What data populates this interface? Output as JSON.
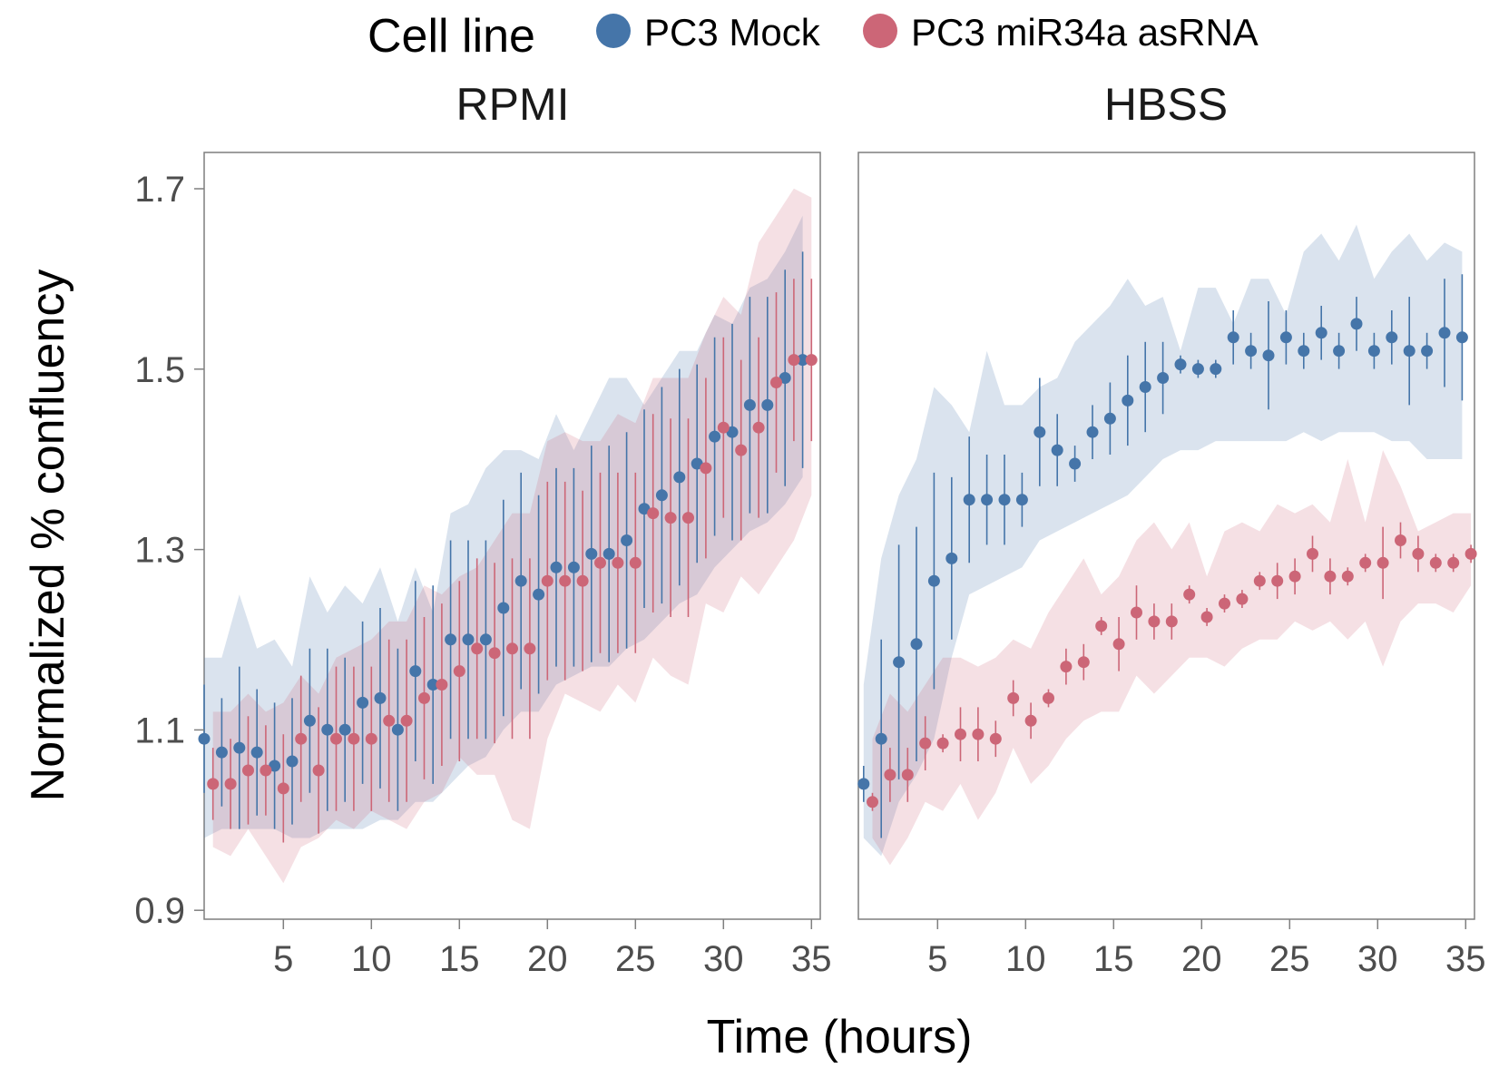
{
  "legend": {
    "title": "Cell line",
    "items": [
      {
        "label": "PC3 Mock",
        "color": "#4575a9"
      },
      {
        "label": "PC3 miR34a asRNA",
        "color": "#cc6677"
      }
    ]
  },
  "axes": {
    "xlabel": "Time (hours)",
    "ylabel": "Normalized % confluency",
    "yticks": [
      "0.9",
      "1.1",
      "1.3",
      "1.5",
      "1.7"
    ],
    "xticks": [
      "5",
      "10",
      "15",
      "20",
      "25",
      "30",
      "35"
    ]
  },
  "chart_data": [
    {
      "type": "scatter",
      "facet": "RPMI",
      "xlim": [
        0.5,
        35.5
      ],
      "ylim": [
        0.89,
        1.74
      ],
      "xlabel": "Time (hours)",
      "ylabel": "Normalized % confluency",
      "grid": false,
      "legend_position": "top",
      "series": [
        {
          "name": "PC3 Mock",
          "color": "#4575a9",
          "x": [
            0.5,
            1.5,
            2.5,
            3.5,
            4.5,
            5.5,
            6.5,
            7.5,
            8.5,
            9.5,
            10.5,
            11.5,
            12.5,
            13.5,
            14.5,
            15.5,
            16.5,
            17.5,
            18.5,
            19.5,
            20.5,
            21.5,
            22.5,
            23.5,
            24.5,
            25.5,
            26.5,
            27.5,
            28.5,
            29.5,
            30.5,
            31.5,
            32.5,
            33.5,
            34.5
          ],
          "y": [
            1.09,
            1.075,
            1.08,
            1.075,
            1.06,
            1.065,
            1.11,
            1.1,
            1.1,
            1.13,
            1.135,
            1.1,
            1.165,
            1.15,
            1.2,
            1.2,
            1.2,
            1.235,
            1.265,
            1.25,
            1.28,
            1.28,
            1.295,
            1.295,
            1.31,
            1.345,
            1.36,
            1.38,
            1.395,
            1.425,
            1.43,
            1.46,
            1.46,
            1.49,
            1.51
          ],
          "err": [
            0.06,
            0.06,
            0.09,
            0.07,
            0.07,
            0.07,
            0.08,
            0.09,
            0.08,
            0.09,
            0.1,
            0.09,
            0.1,
            0.11,
            0.11,
            0.11,
            0.11,
            0.12,
            0.12,
            0.11,
            0.11,
            0.11,
            0.12,
            0.12,
            0.12,
            0.11,
            0.12,
            0.12,
            0.11,
            0.11,
            0.12,
            0.12,
            0.12,
            0.12,
            0.12
          ],
          "band_low": [
            0.98,
            0.99,
            0.99,
            0.99,
            0.99,
            0.98,
            0.98,
            0.99,
            0.99,
            0.99,
            1.0,
            1.0,
            1.02,
            1.02,
            1.04,
            1.06,
            1.07,
            1.1,
            1.12,
            1.12,
            1.15,
            1.16,
            1.17,
            1.17,
            1.19,
            1.2,
            1.22,
            1.24,
            1.25,
            1.28,
            1.3,
            1.32,
            1.33,
            1.35,
            1.38
          ],
          "band_high": [
            1.18,
            1.18,
            1.25,
            1.19,
            1.2,
            1.17,
            1.27,
            1.23,
            1.26,
            1.24,
            1.28,
            1.22,
            1.28,
            1.23,
            1.34,
            1.35,
            1.39,
            1.41,
            1.41,
            1.4,
            1.45,
            1.41,
            1.45,
            1.49,
            1.49,
            1.46,
            1.49,
            1.52,
            1.52,
            1.56,
            1.55,
            1.59,
            1.6,
            1.63,
            1.67
          ]
        },
        {
          "name": "PC3 miR34a asRNA",
          "color": "#cc6677",
          "x": [
            1.0,
            2.0,
            3.0,
            4.0,
            5.0,
            6.0,
            7.0,
            8.0,
            9.0,
            10.0,
            11.0,
            12.0,
            13.0,
            14.0,
            15.0,
            16.0,
            17.0,
            18.0,
            19.0,
            20.0,
            21.0,
            22.0,
            23.0,
            24.0,
            25.0,
            26.0,
            27.0,
            28.0,
            29.0,
            30.0,
            31.0,
            32.0,
            33.0,
            34.0,
            35.0
          ],
          "y": [
            1.04,
            1.04,
            1.055,
            1.055,
            1.035,
            1.09,
            1.055,
            1.09,
            1.09,
            1.09,
            1.11,
            1.11,
            1.135,
            1.15,
            1.165,
            1.19,
            1.185,
            1.19,
            1.19,
            1.265,
            1.265,
            1.265,
            1.285,
            1.285,
            1.285,
            1.34,
            1.335,
            1.335,
            1.39,
            1.435,
            1.41,
            1.435,
            1.485,
            1.51,
            1.51
          ],
          "err": [
            0.04,
            0.05,
            0.06,
            0.05,
            0.06,
            0.07,
            0.07,
            0.08,
            0.08,
            0.08,
            0.09,
            0.09,
            0.09,
            0.09,
            0.1,
            0.1,
            0.1,
            0.1,
            0.1,
            0.11,
            0.11,
            0.1,
            0.1,
            0.1,
            0.1,
            0.11,
            0.11,
            0.11,
            0.1,
            0.1,
            0.1,
            0.1,
            0.1,
            0.09,
            0.09
          ],
          "band_low": [
            0.97,
            0.96,
            0.99,
            0.96,
            0.93,
            0.97,
            0.98,
            1.0,
            0.99,
            1.01,
            1.0,
            0.99,
            1.02,
            1.03,
            1.07,
            1.05,
            1.05,
            1.0,
            0.99,
            1.09,
            1.14,
            1.13,
            1.12,
            1.15,
            1.13,
            1.18,
            1.16,
            1.15,
            1.24,
            1.23,
            1.27,
            1.25,
            1.28,
            1.31,
            1.36
          ],
          "band_high": [
            1.12,
            1.12,
            1.14,
            1.12,
            1.13,
            1.16,
            1.14,
            1.18,
            1.19,
            1.2,
            1.22,
            1.22,
            1.26,
            1.25,
            1.27,
            1.28,
            1.31,
            1.34,
            1.34,
            1.42,
            1.43,
            1.42,
            1.42,
            1.45,
            1.44,
            1.49,
            1.49,
            1.49,
            1.54,
            1.58,
            1.56,
            1.64,
            1.67,
            1.7,
            1.69
          ]
        }
      ]
    },
    {
      "type": "scatter",
      "facet": "HBSS",
      "xlim": [
        0.5,
        35.5
      ],
      "ylim": [
        0.89,
        1.74
      ],
      "xlabel": "Time (hours)",
      "ylabel": "Normalized % confluency",
      "grid": false,
      "legend_position": "top",
      "series": [
        {
          "name": "PC3 Mock",
          "color": "#4575a9",
          "x": [
            0.8,
            1.8,
            2.8,
            3.8,
            4.8,
            5.8,
            6.8,
            7.8,
            8.8,
            9.8,
            10.8,
            11.8,
            12.8,
            13.8,
            14.8,
            15.8,
            16.8,
            17.8,
            18.8,
            19.8,
            20.8,
            21.8,
            22.8,
            23.8,
            24.8,
            25.8,
            26.8,
            27.8,
            28.8,
            29.8,
            30.8,
            31.8,
            32.8,
            33.8,
            34.8
          ],
          "y": [
            1.04,
            1.09,
            1.175,
            1.195,
            1.265,
            1.29,
            1.355,
            1.355,
            1.355,
            1.355,
            1.43,
            1.41,
            1.395,
            1.43,
            1.445,
            1.465,
            1.48,
            1.49,
            1.505,
            1.5,
            1.5,
            1.535,
            1.52,
            1.515,
            1.535,
            1.52,
            1.54,
            1.52,
            1.55,
            1.52,
            1.535,
            1.52,
            1.52,
            1.54,
            1.535
          ],
          "err": [
            0.02,
            0.11,
            0.13,
            0.13,
            0.12,
            0.09,
            0.07,
            0.05,
            0.05,
            0.03,
            0.06,
            0.04,
            0.02,
            0.03,
            0.04,
            0.05,
            0.05,
            0.04,
            0.01,
            0.01,
            0.01,
            0.03,
            0.02,
            0.06,
            0.03,
            0.02,
            0.03,
            0.02,
            0.03,
            0.02,
            0.03,
            0.06,
            0.02,
            0.06,
            0.07
          ],
          "band_low": [
            0.98,
            0.96,
            1.02,
            1.05,
            1.09,
            1.18,
            1.25,
            1.26,
            1.27,
            1.28,
            1.31,
            1.32,
            1.33,
            1.34,
            1.35,
            1.36,
            1.38,
            1.4,
            1.41,
            1.41,
            1.42,
            1.42,
            1.42,
            1.42,
            1.42,
            1.43,
            1.42,
            1.43,
            1.43,
            1.43,
            1.42,
            1.42,
            1.4,
            1.4,
            1.4
          ],
          "band_high": [
            1.15,
            1.29,
            1.36,
            1.4,
            1.48,
            1.46,
            1.43,
            1.52,
            1.46,
            1.46,
            1.48,
            1.49,
            1.53,
            1.55,
            1.57,
            1.6,
            1.57,
            1.58,
            1.52,
            1.59,
            1.59,
            1.55,
            1.6,
            1.6,
            1.56,
            1.63,
            1.65,
            1.62,
            1.66,
            1.6,
            1.63,
            1.65,
            1.62,
            1.64,
            1.63
          ]
        },
        {
          "name": "PC3 miR34a asRNA",
          "color": "#cc6677",
          "x": [
            1.3,
            2.3,
            3.3,
            4.3,
            5.3,
            6.3,
            7.3,
            8.3,
            9.3,
            10.3,
            11.3,
            12.3,
            13.3,
            14.3,
            15.3,
            16.3,
            17.3,
            18.3,
            19.3,
            20.3,
            21.3,
            22.3,
            23.3,
            24.3,
            25.3,
            26.3,
            27.3,
            28.3,
            29.3,
            30.3,
            31.3,
            32.3,
            33.3,
            34.3,
            35.3
          ],
          "y": [
            1.02,
            1.05,
            1.05,
            1.085,
            1.085,
            1.095,
            1.095,
            1.09,
            1.135,
            1.11,
            1.135,
            1.17,
            1.175,
            1.215,
            1.195,
            1.23,
            1.22,
            1.22,
            1.25,
            1.225,
            1.24,
            1.245,
            1.265,
            1.265,
            1.27,
            1.295,
            1.27,
            1.27,
            1.285,
            1.285,
            1.31,
            1.295,
            1.285,
            1.285,
            1.295
          ],
          "err": [
            0.01,
            0.03,
            0.03,
            0.03,
            0.01,
            0.03,
            0.03,
            0.02,
            0.02,
            0.02,
            0.01,
            0.02,
            0.02,
            0.01,
            0.03,
            0.03,
            0.02,
            0.02,
            0.01,
            0.01,
            0.01,
            0.01,
            0.01,
            0.02,
            0.02,
            0.02,
            0.02,
            0.01,
            0.01,
            0.04,
            0.02,
            0.02,
            0.01,
            0.01,
            0.01
          ],
          "band_low": [
            0.98,
            0.95,
            0.98,
            1.02,
            1.01,
            1.04,
            1.0,
            1.03,
            1.08,
            1.04,
            1.06,
            1.09,
            1.11,
            1.12,
            1.12,
            1.16,
            1.14,
            1.16,
            1.18,
            1.18,
            1.17,
            1.19,
            1.2,
            1.2,
            1.22,
            1.21,
            1.22,
            1.2,
            1.22,
            1.17,
            1.22,
            1.24,
            1.24,
            1.23,
            1.26
          ],
          "band_high": [
            1.09,
            1.14,
            1.12,
            1.15,
            1.18,
            1.18,
            1.17,
            1.18,
            1.2,
            1.19,
            1.23,
            1.26,
            1.29,
            1.25,
            1.27,
            1.31,
            1.33,
            1.3,
            1.33,
            1.27,
            1.32,
            1.33,
            1.32,
            1.35,
            1.34,
            1.35,
            1.33,
            1.4,
            1.33,
            1.41,
            1.37,
            1.32,
            1.33,
            1.34,
            1.34
          ]
        }
      ]
    }
  ]
}
